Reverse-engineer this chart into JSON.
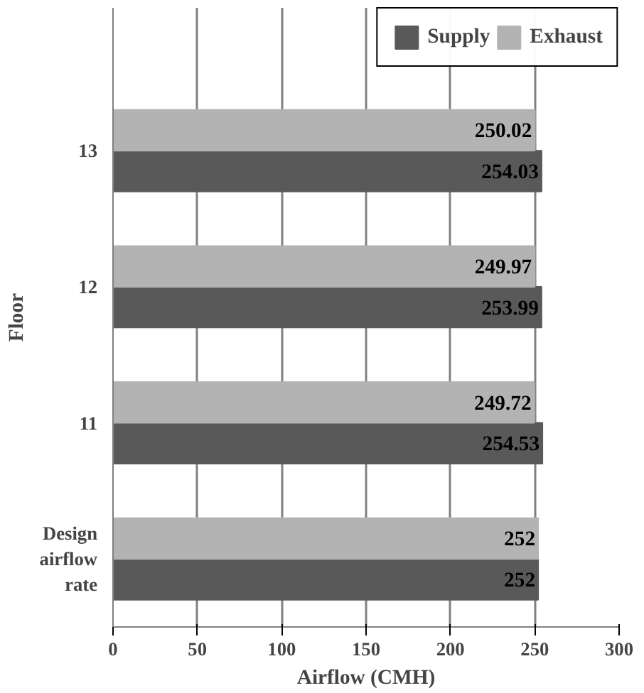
{
  "chart_data": {
    "type": "bar",
    "orientation": "horizontal",
    "xlabel": "Airflow (CMH)",
    "ylabel": "Floor",
    "categories": [
      "13",
      "12",
      "11",
      "Design\nairflow\nrate"
    ],
    "series": [
      {
        "name": "Supply",
        "color": "#595959",
        "values": [
          254.03,
          253.99,
          254.53,
          252
        ]
      },
      {
        "name": "Exhaust",
        "color": "#b3b3b3",
        "values": [
          250.02,
          249.97,
          249.72,
          252
        ]
      }
    ],
    "data_labels": true,
    "xlim": [
      0,
      300
    ],
    "xticks": [
      0,
      50,
      100,
      150,
      200,
      250,
      300
    ],
    "grid": "x",
    "legend": "top right"
  }
}
